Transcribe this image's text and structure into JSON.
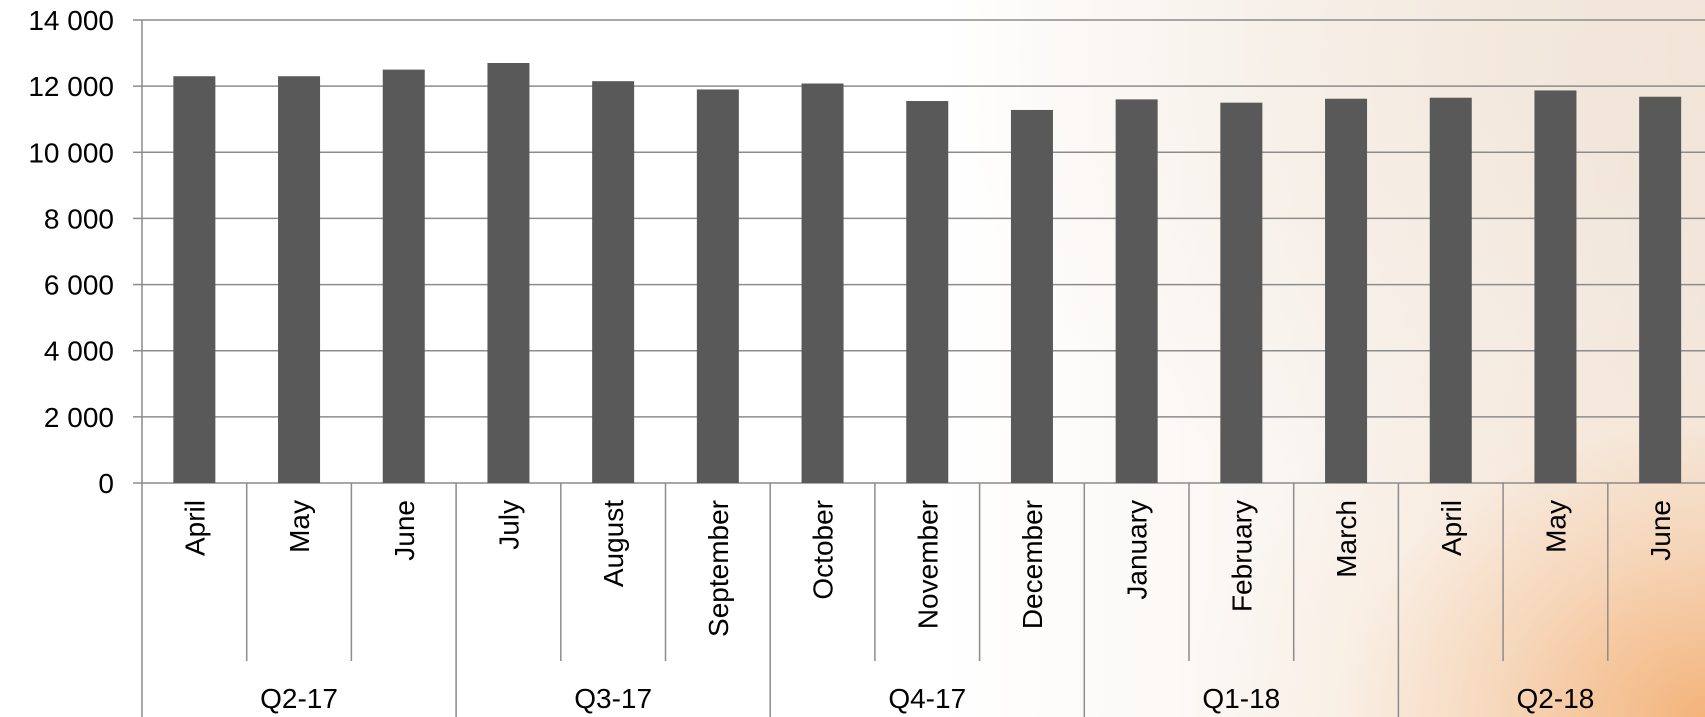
{
  "chart_data": {
    "type": "bar",
    "title": "",
    "xlabel": "",
    "ylabel": "",
    "ylim": [
      0,
      14000
    ],
    "yticks": [
      0,
      2000,
      4000,
      6000,
      8000,
      10000,
      12000,
      14000
    ],
    "ytick_labels": [
      "0",
      "2 000",
      "4 000",
      "6 000",
      "8 000",
      "10 000",
      "12 000",
      "14 000"
    ],
    "grid": true,
    "bar_color": "#595959",
    "categories": [
      "April",
      "May",
      "June",
      "July",
      "August",
      "September",
      "October",
      "November",
      "December",
      "January",
      "February",
      "March",
      "April",
      "May",
      "June"
    ],
    "values": [
      12300,
      12300,
      12500,
      12700,
      12150,
      11900,
      12080,
      11550,
      11280,
      11600,
      11500,
      11620,
      11650,
      11870,
      11680
    ],
    "groups": [
      {
        "label": "Q2-17",
        "count": 3
      },
      {
        "label": "Q3-17",
        "count": 3
      },
      {
        "label": "Q4-17",
        "count": 3
      },
      {
        "label": "Q1-18",
        "count": 3
      },
      {
        "label": "Q2-18",
        "count": 3
      }
    ]
  }
}
